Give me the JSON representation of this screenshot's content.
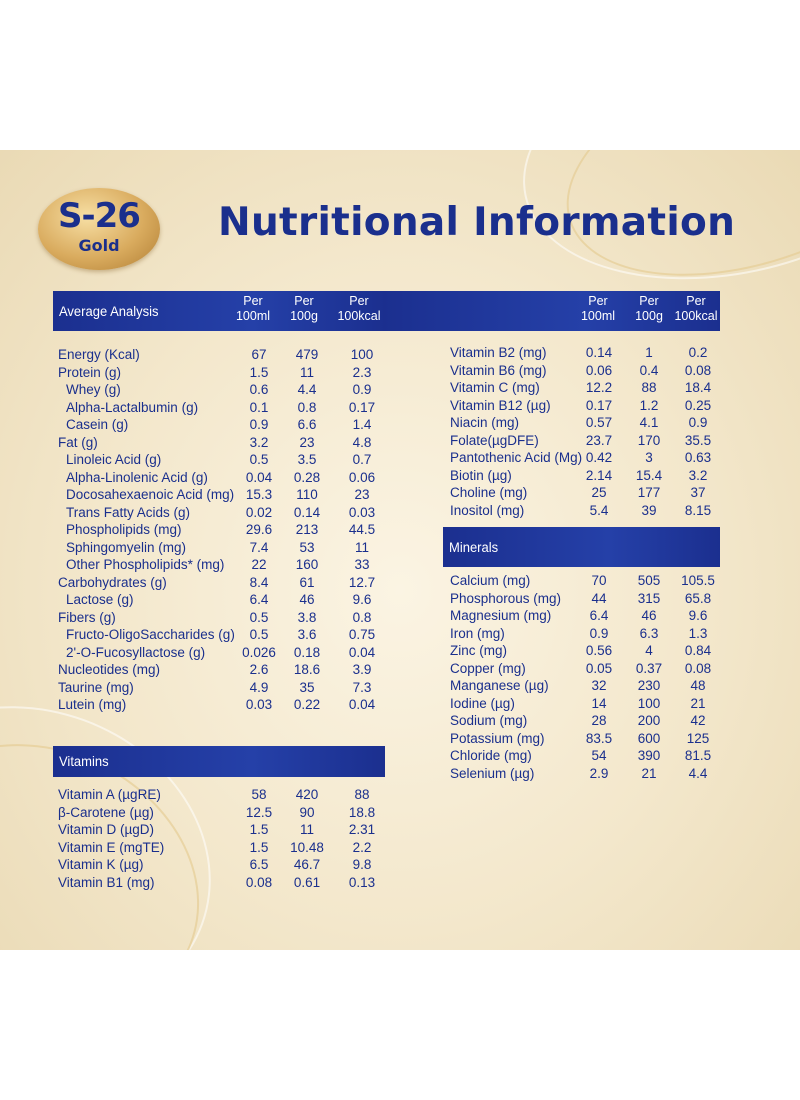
{
  "header": {
    "logo_main": "S-26",
    "logo_sub": "Gold",
    "title": "Nutritional Information"
  },
  "column_headers": [
    {
      "line1": "Per",
      "line2": "100ml"
    },
    {
      "line1": "Per",
      "line2": "100g"
    },
    {
      "line1": "Per",
      "line2": "100kcal"
    }
  ],
  "sections": {
    "average_analysis": "Average Analysis",
    "vitamins": "Vitamins",
    "minerals": "Minerals"
  },
  "average_analysis_rows": [
    {
      "label": "Energy (Kcal)",
      "indent": 0,
      "v": [
        "67",
        "479",
        "100"
      ]
    },
    {
      "label": "Protein (g)",
      "indent": 0,
      "v": [
        "1.5",
        "11",
        "2.3"
      ]
    },
    {
      "label": "Whey (g)",
      "indent": 1,
      "v": [
        "0.6",
        "4.4",
        "0.9"
      ]
    },
    {
      "label": "Alpha-Lactalbumin (g)",
      "indent": 1,
      "v": [
        "0.1",
        "0.8",
        "0.17"
      ]
    },
    {
      "label": "Casein (g)",
      "indent": 1,
      "v": [
        "0.9",
        "6.6",
        "1.4"
      ]
    },
    {
      "label": "Fat (g)",
      "indent": 0,
      "v": [
        "3.2",
        "23",
        "4.8"
      ]
    },
    {
      "label": "Linoleic Acid (g)",
      "indent": 1,
      "v": [
        "0.5",
        "3.5",
        "0.7"
      ]
    },
    {
      "label": "Alpha-Linolenic Acid (g)",
      "indent": 1,
      "v": [
        "0.04",
        "0.28",
        "0.06"
      ]
    },
    {
      "label": "Docosahexaenoic Acid (mg)",
      "indent": 1,
      "v": [
        "15.3",
        "110",
        "23"
      ]
    },
    {
      "label": "Trans Fatty Acids (g)",
      "indent": 1,
      "v": [
        "0.02",
        "0.14",
        "0.03"
      ]
    },
    {
      "label": "Phospholipids (mg)",
      "indent": 1,
      "v": [
        "29.6",
        "213",
        "44.5"
      ]
    },
    {
      "label": "Sphingomyelin (mg)",
      "indent": 1,
      "v": [
        "7.4",
        "53",
        "11"
      ]
    },
    {
      "label": "Other Phospholipids* (mg)",
      "indent": 1,
      "v": [
        "22",
        "160",
        "33"
      ]
    },
    {
      "label": "Carbohydrates (g)",
      "indent": 0,
      "v": [
        "8.4",
        "61",
        "12.7"
      ]
    },
    {
      "label": "Lactose (g)",
      "indent": 1,
      "v": [
        "6.4",
        "46",
        "9.6"
      ]
    },
    {
      "label": "Fibers (g)",
      "indent": 0,
      "v": [
        "0.5",
        "3.8",
        "0.8"
      ]
    },
    {
      "label": "Fructo-OligoSaccharides (g)",
      "indent": 1,
      "v": [
        "0.5",
        "3.6",
        "0.75"
      ]
    },
    {
      "label": "2'-O-Fucosyllactose (g)",
      "indent": 1,
      "v": [
        "0.026",
        "0.18",
        "0.04"
      ]
    },
    {
      "label": "Nucleotides (mg)",
      "indent": 0,
      "v": [
        "2.6",
        "18.6",
        "3.9"
      ]
    },
    {
      "label": "Taurine (mg)",
      "indent": 0,
      "v": [
        "4.9",
        "35",
        "7.3"
      ]
    },
    {
      "label": "Lutein (mg)",
      "indent": 0,
      "v": [
        "0.03",
        "0.22",
        "0.04"
      ]
    }
  ],
  "vitamins_rows": [
    {
      "label": "Vitamin A (µgRE)",
      "indent": 0,
      "v": [
        "58",
        "420",
        "88"
      ]
    },
    {
      "label": "β-Carotene (µg)",
      "indent": 0,
      "v": [
        "12.5",
        "90",
        "18.8"
      ]
    },
    {
      "label": "Vitamin D (µgD)",
      "indent": 0,
      "v": [
        "1.5",
        "11",
        "2.31"
      ]
    },
    {
      "label": "Vitamin E (mgTE)",
      "indent": 0,
      "v": [
        "1.5",
        "10.48",
        "2.2"
      ]
    },
    {
      "label": "Vitamin K (µg)",
      "indent": 0,
      "v": [
        "6.5",
        "46.7",
        "9.8"
      ]
    },
    {
      "label": "Vitamin B1 (mg)",
      "indent": 0,
      "v": [
        "0.08",
        "0.61",
        "0.13"
      ]
    }
  ],
  "vitamins_right_rows": [
    {
      "label": "Vitamin B2 (mg)",
      "indent": 0,
      "v": [
        "0.14",
        "1",
        "0.2"
      ]
    },
    {
      "label": "Vitamin B6 (mg)",
      "indent": 0,
      "v": [
        "0.06",
        "0.4",
        "0.08"
      ]
    },
    {
      "label": "Vitamin C (mg)",
      "indent": 0,
      "v": [
        "12.2",
        "88",
        "18.4"
      ]
    },
    {
      "label": "Vitamin B12 (µg)",
      "indent": 0,
      "v": [
        "0.17",
        "1.2",
        "0.25"
      ]
    },
    {
      "label": "Niacin (mg)",
      "indent": 0,
      "v": [
        "0.57",
        "4.1",
        "0.9"
      ]
    },
    {
      "label": "Folate(µgDFE)",
      "indent": 0,
      "v": [
        "23.7",
        "170",
        "35.5"
      ]
    },
    {
      "label": "Pantothenic Acid (Mg)",
      "indent": 0,
      "v": [
        "0.42",
        "3",
        "0.63"
      ]
    },
    {
      "label": "Biotin (µg)",
      "indent": 0,
      "v": [
        "2.14",
        "15.4",
        "3.2"
      ]
    },
    {
      "label": "Choline (mg)",
      "indent": 0,
      "v": [
        "25",
        "177",
        "37"
      ]
    },
    {
      "label": "Inositol (mg)",
      "indent": 0,
      "v": [
        "5.4",
        "39",
        "8.15"
      ]
    }
  ],
  "minerals_rows": [
    {
      "label": "Calcium (mg)",
      "indent": 0,
      "v": [
        "70",
        "505",
        "105.5"
      ]
    },
    {
      "label": "Phosphorous (mg)",
      "indent": 0,
      "v": [
        "44",
        "315",
        "65.8"
      ]
    },
    {
      "label": "Magnesium (mg)",
      "indent": 0,
      "v": [
        "6.4",
        "46",
        "9.6"
      ]
    },
    {
      "label": "Iron (mg)",
      "indent": 0,
      "v": [
        "0.9",
        "6.3",
        "1.3"
      ]
    },
    {
      "label": "Zinc (mg)",
      "indent": 0,
      "v": [
        "0.56",
        "4",
        "0.84"
      ]
    },
    {
      "label": "Copper (mg)",
      "indent": 0,
      "v": [
        "0.05",
        "0.37",
        "0.08"
      ]
    },
    {
      "label": "Manganese (µg)",
      "indent": 0,
      "v": [
        "32",
        "230",
        "48"
      ]
    },
    {
      "label": "Iodine (µg)",
      "indent": 0,
      "v": [
        "14",
        "100",
        "21"
      ]
    },
    {
      "label": "Sodium (mg)",
      "indent": 0,
      "v": [
        "28",
        "200",
        "42"
      ]
    },
    {
      "label": "Potassium (mg)",
      "indent": 0,
      "v": [
        "83.5",
        "600",
        "125"
      ]
    },
    {
      "label": "Chloride (mg)",
      "indent": 0,
      "v": [
        "54",
        "390",
        "81.5"
      ]
    },
    {
      "label": "Selenium (µg)",
      "indent": 0,
      "v": [
        "2.9",
        "21",
        "4.4"
      ]
    }
  ]
}
